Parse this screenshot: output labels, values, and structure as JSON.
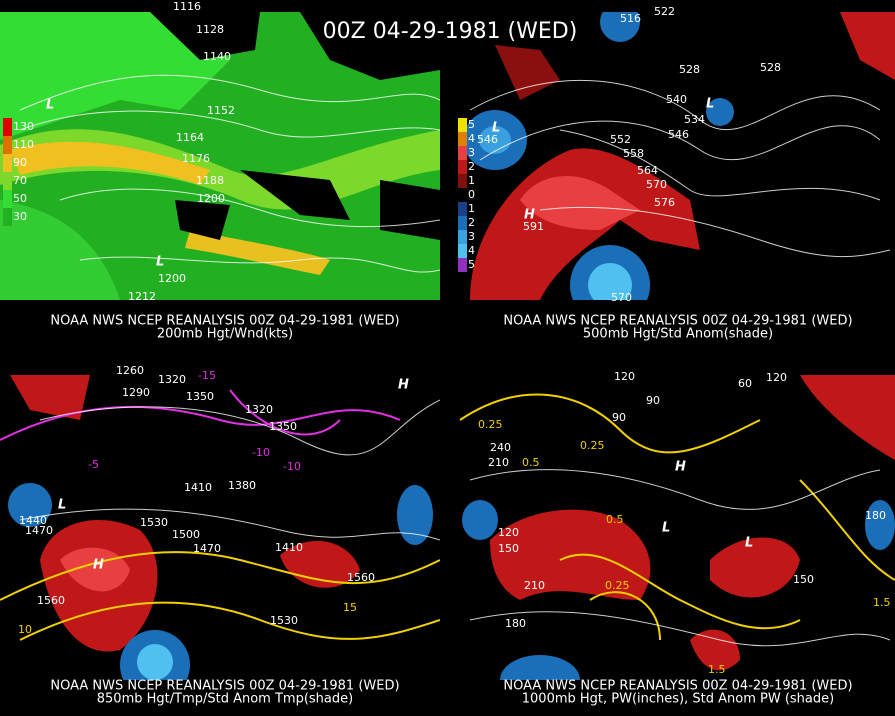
{
  "title": "00Z 04-29-1981 (WED)",
  "panels": [
    {
      "caption": "NOAA NWS NCEP REANALYSIS 00Z 04-29-1981 (WED)",
      "subtitle": "200mb Hgt/Wnd(kts)",
      "legend": [
        "130",
        "110",
        "90",
        "70",
        "50",
        "30"
      ],
      "labels": [
        "1116",
        "1128",
        "1140",
        "1152",
        "1164",
        "1176",
        "1188",
        "1200",
        "1200",
        "1212",
        "L",
        "L"
      ]
    },
    {
      "caption": "NOAA NWS NCEP REANALYSIS 00Z 04-29-1981 (WED)",
      "subtitle": "500mb Hgt/Std Anom(shade)",
      "legend": [
        "5",
        "4",
        "3",
        "2",
        "1",
        "0",
        "1",
        "2",
        "3",
        "4",
        "5"
      ],
      "labels": [
        "516",
        "522",
        "528",
        "528",
        "540",
        "534",
        "546",
        "552",
        "558",
        "564",
        "570",
        "576",
        "546",
        "591",
        "570",
        "H",
        "L",
        "L"
      ]
    },
    {
      "caption": "NOAA NWS NCEP REANALYSIS 00Z 04-29-1981 (WED)",
      "subtitle": "850mb Hgt/Tmp/Std Anom Tmp(shade)",
      "labels": [
        "1260",
        "1290",
        "1320",
        "1350",
        "1320",
        "1350",
        "1410",
        "1380",
        "1470",
        "1530",
        "1500",
        "1470",
        "1440",
        "1410",
        "1560",
        "1560",
        "1530",
        "-15",
        "-10",
        "-5",
        "-10",
        "10",
        "15",
        "H",
        "H",
        "L"
      ]
    },
    {
      "caption": "NOAA NWS NCEP REANALYSIS 00Z 04-29-1981 (WED)",
      "subtitle": "1000mb Hgt, PW(inches), Std Anom PW (shade)",
      "labels": [
        "120",
        "90",
        "60",
        "90",
        "120",
        "240",
        "210",
        "180",
        "0.25",
        "0.5",
        "0.25",
        "0.5",
        "0.25",
        "1.5",
        "1.5",
        "120",
        "150",
        "180",
        "150",
        "210",
        "H",
        "L",
        "L"
      ]
    }
  ]
}
